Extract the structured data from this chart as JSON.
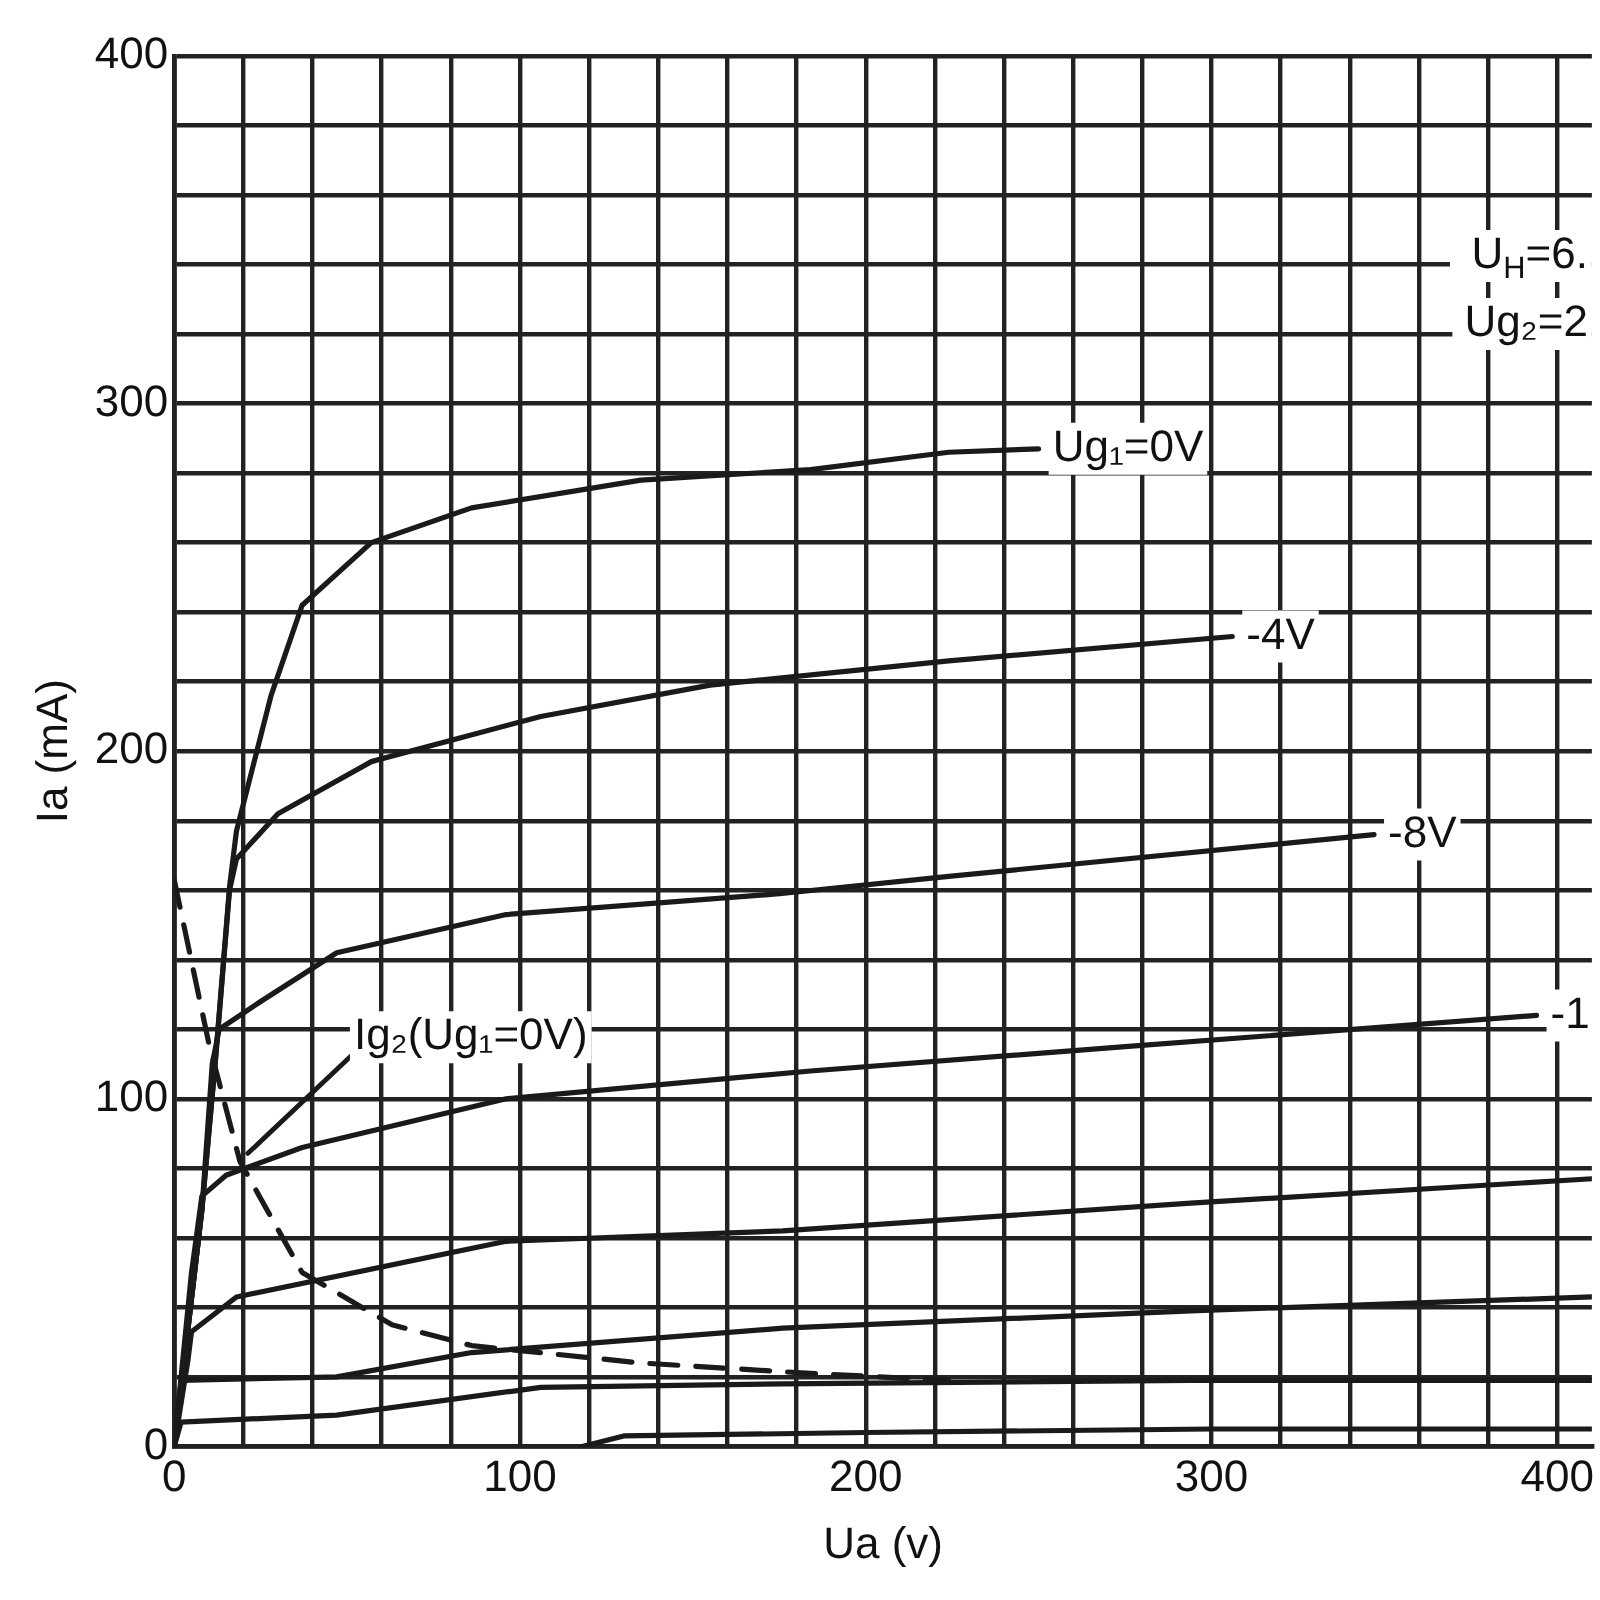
{
  "chart_data": {
    "type": "line",
    "xlabel": "Ua (v)",
    "ylabel": "Ia (mA)",
    "xlim": [
      0,
      410
    ],
    "ylim": [
      0,
      400
    ],
    "xticks": [
      0,
      {
        "value": 20,
        "label": null
      },
      {
        "value": 40,
        "label": null
      },
      {
        "value": 60,
        "label": null
      },
      {
        "value": 80,
        "label": null
      },
      100,
      {
        "value": 120,
        "label": null
      },
      {
        "value": 140,
        "label": null
      },
      {
        "value": 160,
        "label": null
      },
      {
        "value": 180,
        "label": null
      },
      200,
      {
        "value": 220,
        "label": null
      },
      {
        "value": 240,
        "label": null
      },
      {
        "value": 260,
        "label": null
      },
      {
        "value": 280,
        "label": null
      },
      300,
      {
        "value": 320,
        "label": null
      },
      {
        "value": 340,
        "label": null
      },
      {
        "value": 360,
        "label": null
      },
      {
        "value": 380,
        "label": null
      },
      400
    ],
    "yticks": [
      0,
      {
        "value": 20,
        "label": null
      },
      {
        "value": 40,
        "label": null
      },
      {
        "value": 60,
        "label": null
      },
      {
        "value": 80,
        "label": null
      },
      100,
      {
        "value": 120,
        "label": null
      },
      {
        "value": 140,
        "label": null
      },
      {
        "value": 160,
        "label": null
      },
      {
        "value": 180,
        "label": null
      },
      200,
      {
        "value": 220,
        "label": null
      },
      {
        "value": 240,
        "label": null
      },
      {
        "value": 260,
        "label": null
      },
      {
        "value": 280,
        "label": null
      },
      300,
      {
        "value": 320,
        "label": null
      },
      {
        "value": 340,
        "label": null
      },
      {
        "value": 360,
        "label": null
      },
      {
        "value": 380,
        "label": null
      },
      400
    ],
    "grid": true,
    "legend": false,
    "marker": "none",
    "line_style": "solid",
    "series": [
      {
        "name": "Ug₁=0V",
        "color": "#1a1a1a",
        "x": [
          0,
          8,
          12,
          16,
          18,
          28,
          37,
          57,
          86,
          135,
          184,
          224,
          250
        ],
        "values": [
          0,
          68,
          112,
          161,
          177,
          216,
          242,
          260,
          270,
          278,
          281,
          286,
          287
        ]
      },
      {
        "name": "-4V",
        "color": "#1a1a1a",
        "x": [
          0,
          8,
          12,
          16,
          18,
          30,
          57,
          106,
          155,
          224,
          306
        ],
        "values": [
          0,
          68,
          112,
          160,
          169,
          182,
          197,
          210,
          219,
          226,
          233
        ]
      },
      {
        "name": "-8V",
        "color": "#1a1a1a",
        "x": [
          0,
          8,
          11,
          13,
          25,
          47,
          96,
          175,
          224,
          347
        ],
        "values": [
          0,
          68,
          110,
          120,
          128,
          142,
          153,
          159,
          164,
          176
        ]
      },
      {
        "name": "-1",
        "color": "#1a1a1a",
        "x": [
          0,
          5,
          8,
          15,
          37,
          96,
          184,
          275,
          394
        ],
        "values": [
          0,
          50,
          72,
          78,
          86,
          100,
          108,
          115,
          124
        ]
      },
      {
        "color": "#1a1a1a",
        "x": [
          0,
          4,
          5,
          18,
          96,
          176,
          294,
          410
        ],
        "values": [
          0,
          25,
          33,
          43,
          59,
          62,
          70,
          77
        ]
      },
      {
        "color": "#1a1a1a",
        "x": [
          0,
          2,
          47,
          86,
          176,
          294,
          410
        ],
        "values": [
          0,
          19,
          20,
          27,
          34,
          39,
          43
        ]
      },
      {
        "color": "#1a1a1a",
        "x": [
          0,
          2,
          47,
          106,
          176,
          294,
          410
        ],
        "values": [
          0,
          7,
          9,
          17,
          18,
          19,
          19
        ]
      },
      {
        "color": "#1a1a1a",
        "x": [
          118,
          130,
          200,
          300,
          410
        ],
        "values": [
          0,
          3,
          4,
          5,
          5
        ]
      },
      {
        "color": "#1a1a1a",
        "line_style": "dashed",
        "x": [
          0,
          10,
          19,
          37,
          63,
          86,
          135,
          184,
          224
        ],
        "values": [
          163,
          116,
          82,
          50,
          35,
          29,
          24,
          21,
          19
        ]
      }
    ],
    "annotations": [
      "U$_{H}$=6.",
      "Ug₂=2",
      {
        "text": "Ig₂(Ug₁=0V)",
        "x": 19,
        "y": 82
      }
    ]
  }
}
